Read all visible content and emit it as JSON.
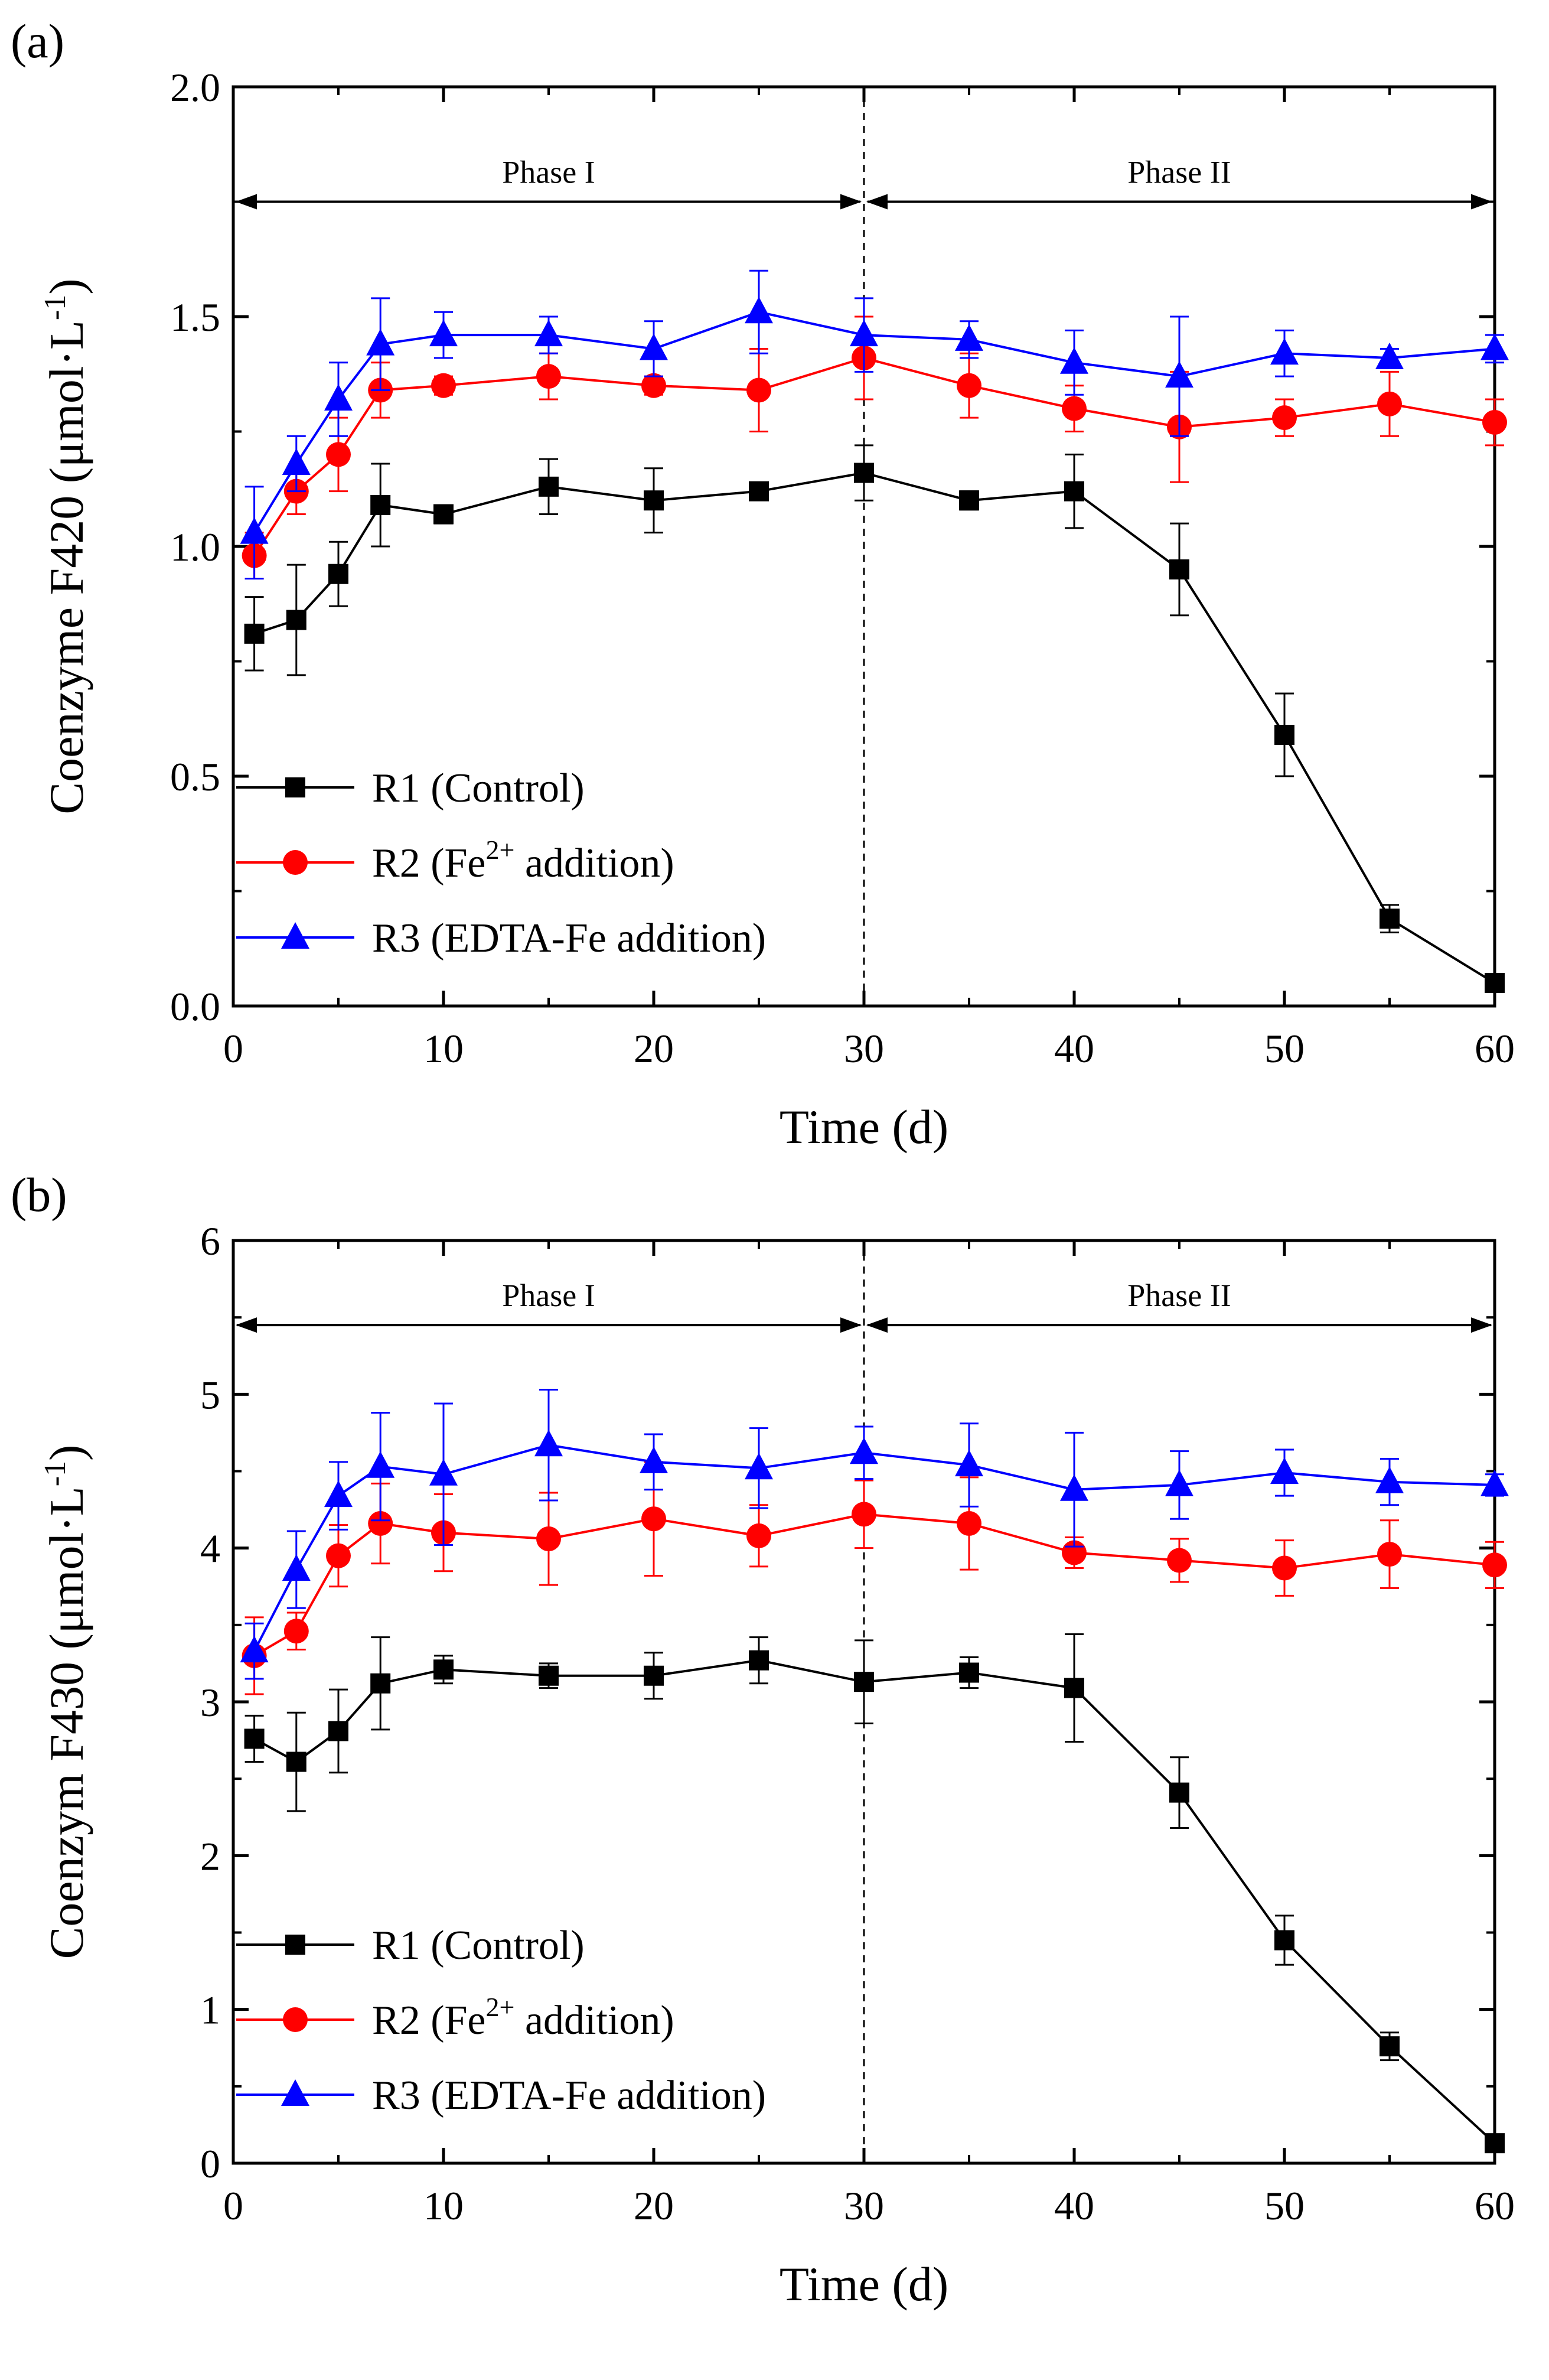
{
  "chart_data": [
    {
      "type": "line",
      "panel_label": "(a)",
      "xlabel": "Time (d)",
      "ylabel": "Coenzyme F420 (μmol·L",
      "ylabel_sup": "-1",
      "ylabel_close": ")",
      "xlim": [
        0,
        60
      ],
      "ylim": [
        0.0,
        2.0
      ],
      "xticks": [
        0,
        10,
        20,
        30,
        40,
        50,
        60
      ],
      "xtick_labels": [
        "0",
        "10",
        "20",
        "30",
        "40",
        "50",
        "60"
      ],
      "yticks": [
        0.0,
        0.5,
        1.0,
        1.5,
        2.0
      ],
      "ytick_labels": [
        "0.0",
        "0.5",
        "1.0",
        "1.5",
        "2.0"
      ],
      "phase_divider_x": 30,
      "phases": [
        {
          "label": "Phase I",
          "start": 0,
          "end": 30
        },
        {
          "label": "Phase II",
          "start": 30,
          "end": 60
        }
      ],
      "phase_arrow_y": 1.75,
      "legend_position": "bottom-left",
      "series": [
        {
          "name": "R1 (Control)",
          "label_parts": [
            "R1 (Control)"
          ],
          "color": "#000000",
          "marker": "square",
          "x": [
            1,
            3,
            5,
            7,
            10,
            15,
            20,
            25,
            30,
            35,
            40,
            45,
            50,
            55,
            60
          ],
          "y": [
            0.81,
            0.84,
            0.94,
            1.09,
            1.07,
            1.13,
            1.1,
            1.12,
            1.16,
            1.1,
            1.12,
            0.95,
            0.59,
            0.19,
            0.05
          ],
          "err": [
            0.08,
            0.12,
            0.07,
            0.09,
            0.02,
            0.06,
            0.07,
            0.01,
            0.06,
            0.02,
            0.08,
            0.1,
            0.09,
            0.03,
            0.01
          ]
        },
        {
          "name": "R2 (Fe2+ addition)",
          "label_parts": [
            "R2 (Fe",
            "2+",
            " addition)"
          ],
          "color": "#ff0000",
          "marker": "circle",
          "x": [
            1,
            3,
            5,
            7,
            10,
            15,
            20,
            25,
            30,
            35,
            40,
            45,
            50,
            55,
            60
          ],
          "y": [
            0.98,
            1.12,
            1.2,
            1.34,
            1.35,
            1.37,
            1.35,
            1.34,
            1.41,
            1.35,
            1.3,
            1.26,
            1.28,
            1.31,
            1.27
          ],
          "err": [
            0.05,
            0.05,
            0.08,
            0.06,
            0.02,
            0.05,
            0.02,
            0.09,
            0.09,
            0.07,
            0.05,
            0.12,
            0.04,
            0.07,
            0.05
          ]
        },
        {
          "name": "R3 (EDTA-Fe addition)",
          "label_parts": [
            "R3 (EDTA-Fe addition)"
          ],
          "color": "#0000ff",
          "marker": "triangle",
          "x": [
            1,
            3,
            5,
            7,
            10,
            15,
            20,
            25,
            30,
            35,
            40,
            45,
            50,
            55,
            60
          ],
          "y": [
            1.03,
            1.18,
            1.32,
            1.44,
            1.46,
            1.46,
            1.43,
            1.51,
            1.46,
            1.45,
            1.4,
            1.37,
            1.42,
            1.41,
            1.43
          ],
          "err": [
            0.1,
            0.06,
            0.08,
            0.1,
            0.05,
            0.04,
            0.06,
            0.09,
            0.08,
            0.04,
            0.07,
            0.13,
            0.05,
            0.02,
            0.03
          ]
        }
      ]
    },
    {
      "type": "line",
      "panel_label": "(b)",
      "xlabel": "Time (d)",
      "ylabel": "Coenzym F430 (μmol·L",
      "ylabel_sup": "-1",
      "ylabel_close": ")",
      "xlim": [
        0,
        60
      ],
      "ylim": [
        0,
        6
      ],
      "xticks": [
        0,
        10,
        20,
        30,
        40,
        50,
        60
      ],
      "xtick_labels": [
        "0",
        "10",
        "20",
        "30",
        "40",
        "50",
        "60"
      ],
      "yticks": [
        0,
        1,
        2,
        3,
        4,
        5,
        6
      ],
      "ytick_labels": [
        "0",
        "1",
        "2",
        "3",
        "4",
        "5",
        "6"
      ],
      "phase_divider_x": 30,
      "phases": [
        {
          "label": "Phase I",
          "start": 0,
          "end": 30
        },
        {
          "label": "Phase II",
          "start": 30,
          "end": 60
        }
      ],
      "phase_arrow_y": 5.45,
      "legend_position": "bottom-left",
      "series": [
        {
          "name": "R1 (Control)",
          "label_parts": [
            "R1 (Control)"
          ],
          "color": "#000000",
          "marker": "square",
          "x": [
            1,
            3,
            5,
            7,
            10,
            15,
            20,
            25,
            30,
            35,
            40,
            45,
            50,
            55,
            60
          ],
          "y": [
            2.76,
            2.61,
            2.81,
            3.12,
            3.21,
            3.17,
            3.17,
            3.27,
            3.13,
            3.19,
            3.09,
            2.41,
            1.45,
            0.76,
            0.13
          ],
          "err": [
            0.15,
            0.32,
            0.27,
            0.3,
            0.09,
            0.08,
            0.15,
            0.15,
            0.27,
            0.1,
            0.35,
            0.23,
            0.16,
            0.09,
            0.04
          ]
        },
        {
          "name": "R2 (Fe2+ addition)",
          "label_parts": [
            "R2 (Fe",
            "2+",
            " addition)"
          ],
          "color": "#ff0000",
          "marker": "circle",
          "x": [
            1,
            3,
            5,
            7,
            10,
            15,
            20,
            25,
            30,
            35,
            40,
            45,
            50,
            55,
            60
          ],
          "y": [
            3.3,
            3.46,
            3.95,
            4.16,
            4.1,
            4.06,
            4.19,
            4.08,
            4.22,
            4.16,
            3.97,
            3.92,
            3.87,
            3.96,
            3.89
          ],
          "err": [
            0.25,
            0.12,
            0.2,
            0.26,
            0.25,
            0.3,
            0.37,
            0.2,
            0.22,
            0.3,
            0.1,
            0.14,
            0.18,
            0.22,
            0.15
          ]
        },
        {
          "name": "R3 (EDTA-Fe addition)",
          "label_parts": [
            "R3 (EDTA-Fe addition)"
          ],
          "color": "#0000ff",
          "marker": "triangle",
          "x": [
            1,
            3,
            5,
            7,
            10,
            15,
            20,
            25,
            30,
            35,
            40,
            45,
            50,
            55,
            60
          ],
          "y": [
            3.33,
            3.86,
            4.34,
            4.53,
            4.48,
            4.67,
            4.56,
            4.52,
            4.62,
            4.54,
            4.38,
            4.41,
            4.49,
            4.43,
            4.41
          ],
          "err": [
            0.18,
            0.25,
            0.22,
            0.35,
            0.46,
            0.36,
            0.18,
            0.26,
            0.17,
            0.27,
            0.37,
            0.22,
            0.15,
            0.15,
            0.07
          ]
        }
      ]
    }
  ]
}
